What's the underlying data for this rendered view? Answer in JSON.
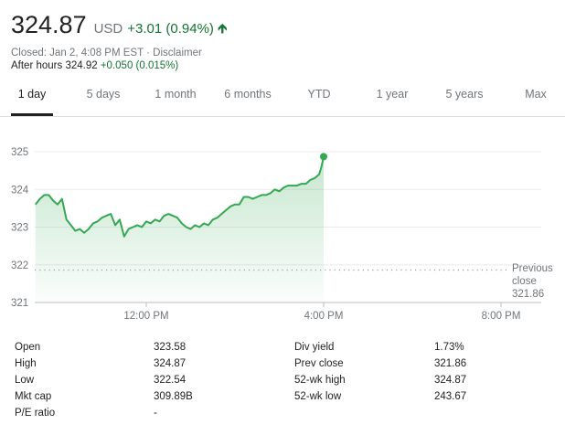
{
  "header": {
    "price": "324.87",
    "currency": "USD",
    "change": "+3.01 (0.94%)",
    "arrow_icon": "arrow-up-icon",
    "closed_text": "Closed: Jan 2, 4:08 PM EST",
    "separator": "·",
    "disclaimer": "Disclaimer",
    "after_hours_label": "After hours",
    "after_hours_price": "324.92",
    "after_hours_change": "+0.050 (0.015%)"
  },
  "tabs": [
    "1 day",
    "5 days",
    "1 month",
    "6 months",
    "YTD",
    "1 year",
    "5 years",
    "Max"
  ],
  "active_tab": "1 day",
  "colors": {
    "up": "#137333",
    "line": "#34a853",
    "muted": "#70757a"
  },
  "chart_data": {
    "type": "area",
    "y_ticks": [
      "325",
      "324",
      "323",
      "322",
      "321"
    ],
    "x_ticks": [
      "12:00 PM",
      "4:00 PM",
      "8:00 PM"
    ],
    "ylim": [
      321,
      325
    ],
    "reference_line": {
      "label_line1": "Previous",
      "label_line2": "close",
      "value_label": "321.86",
      "value": 321.86
    },
    "series": [
      {
        "x": [
          9.5,
          9.6,
          9.7,
          9.8,
          9.9,
          10.0,
          10.1,
          10.2,
          10.3,
          10.4,
          10.5,
          10.6,
          10.7,
          10.8,
          10.9,
          11.0,
          11.1,
          11.2,
          11.3,
          11.4,
          11.5,
          11.6,
          11.7,
          11.8,
          11.9,
          12.0,
          12.1,
          12.2,
          12.3,
          12.4,
          12.5,
          12.6,
          12.7,
          12.8,
          12.9,
          13.0,
          13.1,
          13.2,
          13.3,
          13.4,
          13.5,
          13.6,
          13.7,
          13.8,
          13.9,
          14.0,
          14.1,
          14.2,
          14.3,
          14.4,
          14.5,
          14.6,
          14.7,
          14.8,
          14.9,
          15.0,
          15.1,
          15.2,
          15.3,
          15.4,
          15.5,
          15.6,
          15.7,
          15.8,
          15.9,
          15.95,
          16.0
        ],
        "values": [
          323.6,
          323.75,
          323.85,
          323.85,
          323.7,
          323.6,
          323.75,
          323.2,
          323.05,
          322.9,
          322.95,
          322.85,
          322.95,
          323.1,
          323.15,
          323.25,
          323.3,
          323.35,
          323.05,
          323.2,
          322.75,
          322.95,
          323.0,
          323.05,
          323.0,
          323.15,
          323.1,
          323.2,
          323.15,
          323.3,
          323.35,
          323.3,
          323.25,
          323.1,
          323.0,
          322.95,
          323.05,
          323.0,
          323.1,
          323.05,
          323.2,
          323.25,
          323.35,
          323.45,
          323.55,
          323.6,
          323.6,
          323.8,
          323.8,
          323.75,
          323.8,
          323.85,
          323.85,
          323.9,
          324.0,
          323.95,
          324.05,
          324.1,
          324.1,
          324.1,
          324.15,
          324.15,
          324.25,
          324.3,
          324.4,
          324.6,
          324.87
        ]
      }
    ],
    "end_point": {
      "x": 16.0,
      "value": 324.87
    }
  },
  "stats": {
    "left": [
      {
        "label": "Open",
        "value": "323.58"
      },
      {
        "label": "High",
        "value": "324.87"
      },
      {
        "label": "Low",
        "value": "322.54"
      },
      {
        "label": "Mkt cap",
        "value": "309.89B"
      },
      {
        "label": "P/E ratio",
        "value": "-"
      }
    ],
    "right": [
      {
        "label": "Div yield",
        "value": "1.73%"
      },
      {
        "label": "Prev close",
        "value": "321.86"
      },
      {
        "label": "52-wk high",
        "value": "324.87"
      },
      {
        "label": "52-wk low",
        "value": "243.67"
      }
    ]
  }
}
